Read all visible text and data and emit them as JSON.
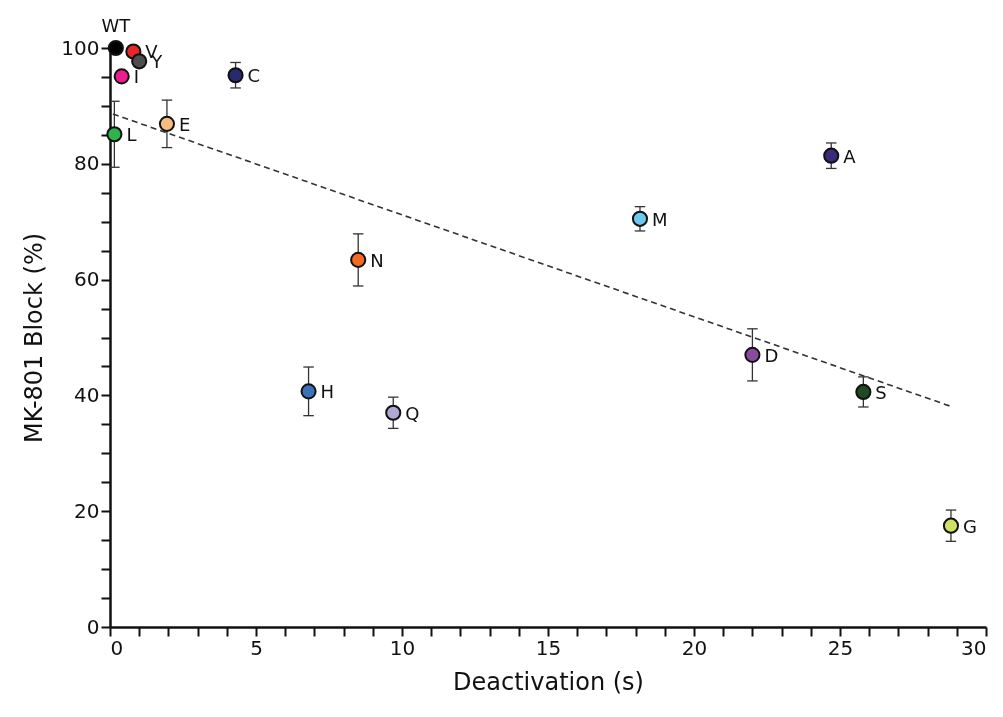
{
  "chart_data": {
    "type": "scatter",
    "xlabel": "Deactivation (s)",
    "ylabel": "MK-801 Block (%)",
    "xlim": [
      0,
      30
    ],
    "ylim": [
      0,
      100
    ],
    "marker": "circle",
    "grid": false,
    "xticks": [
      0,
      {
        "value": 1,
        "label": null
      },
      {
        "value": 2,
        "label": null
      },
      {
        "value": 3,
        "label": null
      },
      {
        "value": 4,
        "label": null
      },
      5,
      {
        "value": 6,
        "label": null
      },
      {
        "value": 7,
        "label": null
      },
      {
        "value": 8,
        "label": null
      },
      {
        "value": 9,
        "label": null
      },
      10,
      {
        "value": 11,
        "label": null
      },
      {
        "value": 12,
        "label": null
      },
      {
        "value": 13,
        "label": null
      },
      {
        "value": 14,
        "label": null
      },
      15,
      {
        "value": 16,
        "label": null
      },
      {
        "value": 17,
        "label": null
      },
      {
        "value": 18,
        "label": null
      },
      {
        "value": 19,
        "label": null
      },
      20,
      {
        "value": 21,
        "label": null
      },
      {
        "value": 22,
        "label": null
      },
      {
        "value": 23,
        "label": null
      },
      {
        "value": 24,
        "label": null
      },
      25,
      {
        "value": 26,
        "label": null
      },
      {
        "value": 27,
        "label": null
      },
      {
        "value": 28,
        "label": null
      },
      {
        "value": 29,
        "label": null
      },
      30
    ],
    "yticks": [
      0,
      {
        "value": 5,
        "label": null
      },
      {
        "value": 10,
        "label": null
      },
      {
        "value": 15,
        "label": null
      },
      20,
      {
        "value": 25,
        "label": null
      },
      {
        "value": 30,
        "label": null
      },
      {
        "value": 35,
        "label": null
      },
      40,
      {
        "value": 45,
        "label": null
      },
      {
        "value": 50,
        "label": null
      },
      {
        "value": 55,
        "label": null
      },
      60,
      {
        "value": 65,
        "label": null
      },
      {
        "value": 70,
        "label": null
      },
      {
        "value": 75,
        "label": null
      },
      80,
      {
        "value": 85,
        "label": null
      },
      {
        "value": 90,
        "label": null
      },
      {
        "value": 95,
        "label": null
      },
      100
    ],
    "series": [
      {
        "type": "line",
        "color": "#333333",
        "line_style": "dashed",
        "marker": "none",
        "x": [
          0.1,
          28.8
        ],
        "values": [
          88.6,
          38.1
        ]
      },
      {
        "name": "WT",
        "color": "#000000",
        "x": [
          0.2
        ],
        "values": [
          100
        ]
      },
      {
        "name": "V",
        "color": "#e8262a",
        "x": [
          0.8
        ],
        "values": [
          99.4
        ]
      },
      {
        "name": "Y",
        "color": "#4d4d4d",
        "x": [
          1.0
        ],
        "values": [
          97.7
        ]
      },
      {
        "name": "I",
        "color": "#ec1c8c",
        "x": [
          0.4
        ],
        "values": [
          95.1
        ]
      },
      {
        "name": "C",
        "color": "#262a6e",
        "x": [
          4.3
        ],
        "values": [
          95.3
        ],
        "errors": [
          2.2
        ]
      },
      {
        "name": "E",
        "color": "#f7bd80",
        "x": [
          1.95
        ],
        "values": [
          86.9
        ],
        "errors": [
          4.1
        ]
      },
      {
        "name": "L",
        "color": "#2fb34a",
        "x": [
          0.15
        ],
        "values": [
          85.1
        ],
        "errors": [
          5.7
        ]
      },
      {
        "name": "N",
        "color": "#f26b22",
        "x": [
          8.5
        ],
        "values": [
          63.4
        ],
        "errors": [
          4.5
        ]
      },
      {
        "name": "M",
        "color": "#6dc8ef",
        "x": [
          18.15
        ],
        "values": [
          70.5
        ],
        "errors": [
          2.1
        ]
      },
      {
        "name": "D",
        "color": "#8a4a9e",
        "x": [
          22.0
        ],
        "values": [
          47.0
        ],
        "errors": [
          4.5
        ]
      },
      {
        "name": "H",
        "color": "#3a73b8",
        "x": [
          6.8
        ],
        "values": [
          40.7
        ],
        "errors": [
          4.2
        ]
      },
      {
        "name": "Q",
        "color": "#aeaad4",
        "x": [
          9.7
        ],
        "values": [
          37.0
        ],
        "errors": [
          2.7
        ]
      },
      {
        "name": "A",
        "color": "#3b2a7a",
        "x": [
          24.7
        ],
        "values": [
          81.4
        ],
        "errors": [
          2.2
        ]
      },
      {
        "name": "S",
        "color": "#1f4a22",
        "x": [
          25.8
        ],
        "values": [
          40.6
        ],
        "errors": [
          2.6
        ]
      },
      {
        "name": "G",
        "color": "#cfe063",
        "x": [
          28.8
        ],
        "values": [
          17.5
        ],
        "errors": [
          2.7
        ]
      }
    ]
  }
}
